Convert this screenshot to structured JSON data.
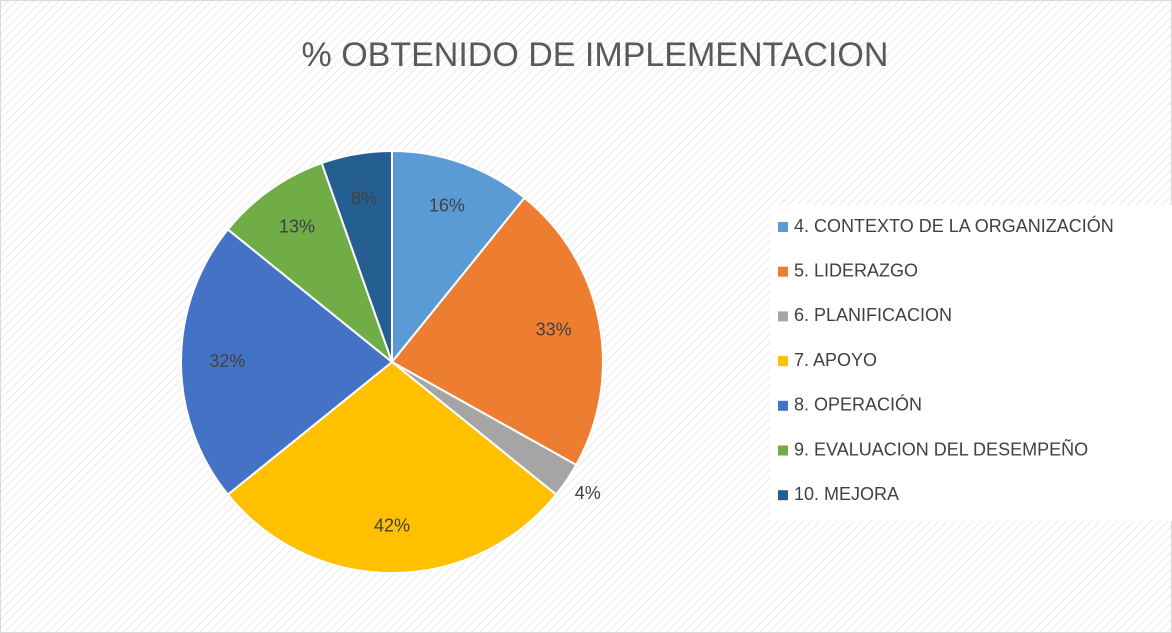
{
  "chart_data": {
    "type": "pie",
    "title": "% OBTENIDO DE IMPLEMENTACION",
    "categories": [
      "4. CONTEXTO DE LA ORGANIZACIÓN",
      "5. LIDERAZGO",
      "6. PLANIFICACION",
      "7. APOYO",
      "8. OPERACIÓN",
      "9. EVALUACION DEL DESEMPEÑO",
      "10. MEJORA"
    ],
    "values": [
      16,
      33,
      4,
      42,
      32,
      13,
      8
    ],
    "value_labels": [
      "16%",
      "33%",
      "4%",
      "42%",
      "32%",
      "13%",
      "8%"
    ],
    "colors": [
      "#5b9bd5",
      "#ed7d31",
      "#a5a5a5",
      "#ffc000",
      "#4472c4",
      "#70ad47",
      "#255e91"
    ],
    "legend": "right"
  }
}
